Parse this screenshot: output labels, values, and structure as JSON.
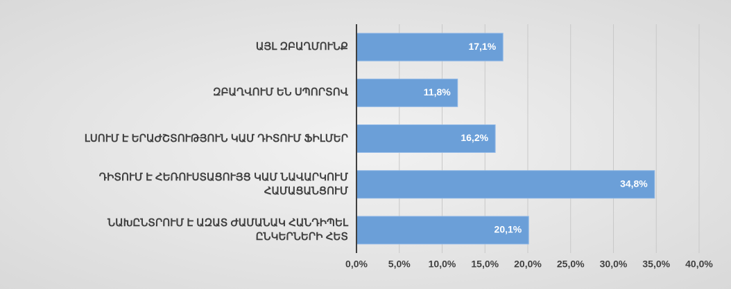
{
  "chart_data": {
    "type": "bar",
    "orientation": "horizontal",
    "categories": [
      "ԱՅԼ ԶԲԱՂՄՈՒՆՔ",
      "ԶԲԱՂՎՈՒՄ ԵՆ ՍՊՈՐՏՈՎ",
      "ԼՍՈՒՄ Է ԵՐԱԺՇՏՈՒԹՅՈՒՆ ԿԱՄ ԴԻՏՈՒՄ ՖԻԼՄԵՐ",
      "ԴԻՏՈՒՄ Է ՀԵՌՈՒՍՏԱՑՈՒՅՑ ԿԱՄ ՆԱՎԱՐԿՈՒՄ ՀԱՄԱՑԱՆՑՈՒՄ",
      "ՆԱԽԸՆՏՐՈՒՄ Է ԱԶԱՏ ԺԱՄԱՆԱԿ ՀԱՆԴԻՊԵԼ ԸՆԿԵՐՆԵՐԻ ՀԵՏ"
    ],
    "values": [
      17.1,
      11.8,
      16.2,
      34.8,
      20.1
    ],
    "value_labels": [
      "17,1%",
      "11,8%",
      "16,2%",
      "34,8%",
      "20,1%"
    ],
    "color": "#6b9fd8",
    "xlim": [
      0,
      40
    ],
    "xticks": [
      {
        "value": 0,
        "label": "0,0%"
      },
      {
        "value": 5,
        "label": "5,0%"
      },
      {
        "value": 10,
        "label": "10,0%"
      },
      {
        "value": 15,
        "label": "15,0%"
      },
      {
        "value": 20,
        "label": "20,0%"
      },
      {
        "value": 25,
        "label": "25,0%"
      },
      {
        "value": 30,
        "label": "30,0%"
      },
      {
        "value": 35,
        "label": "35,0%"
      },
      {
        "value": 40,
        "label": "40,0%"
      }
    ],
    "grid": true
  }
}
